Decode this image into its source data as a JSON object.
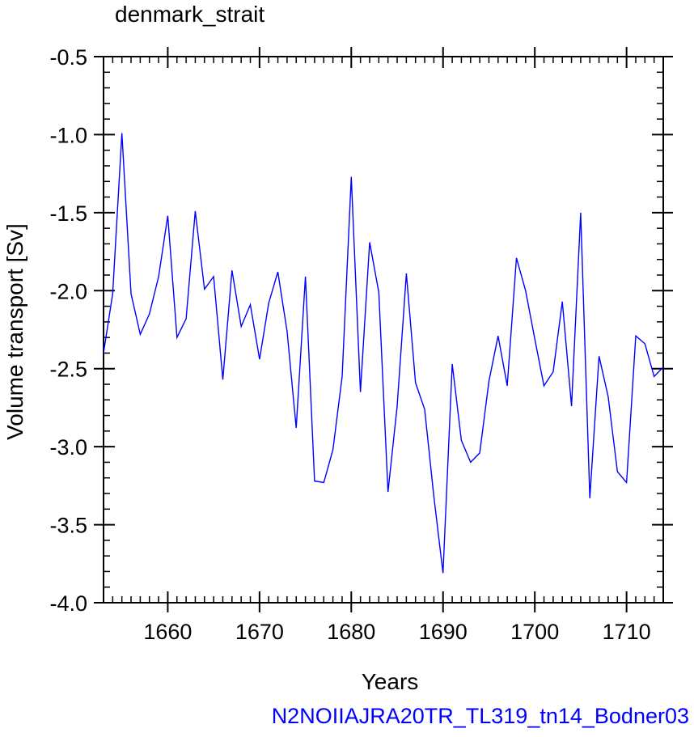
{
  "chart_data": {
    "type": "line",
    "title": "denmark_strait",
    "xlabel": "Years",
    "ylabel": "Volume transport [Sv]",
    "xlim": [
      1653,
      1714
    ],
    "ylim": [
      -4.0,
      -0.5
    ],
    "xticks": [
      1660,
      1670,
      1680,
      1690,
      1700,
      1710
    ],
    "xtick_labels": [
      "1660",
      "1670",
      "1680",
      "1690",
      "1700",
      "1710"
    ],
    "yticks": [
      -0.5,
      -1.0,
      -1.5,
      -2.0,
      -2.5,
      -3.0,
      -3.5,
      -4.0
    ],
    "ytick_labels": [
      "-0.5",
      "-1.0",
      "-1.5",
      "-2.0",
      "-2.5",
      "-3.0",
      "-3.5",
      "-4.0"
    ],
    "grid": false,
    "series": [
      {
        "color": "#0000ff",
        "x": [
          1653,
          1654,
          1655,
          1656,
          1657,
          1658,
          1659,
          1660,
          1661,
          1662,
          1663,
          1664,
          1665,
          1666,
          1667,
          1668,
          1669,
          1670,
          1671,
          1672,
          1673,
          1674,
          1675,
          1676,
          1677,
          1678,
          1679,
          1680,
          1681,
          1682,
          1683,
          1684,
          1685,
          1686,
          1687,
          1688,
          1689,
          1690,
          1691,
          1692,
          1693,
          1694,
          1695,
          1696,
          1697,
          1698,
          1699,
          1700,
          1701,
          1702,
          1703,
          1704,
          1705,
          1706,
          1707,
          1708,
          1709,
          1710,
          1711,
          1712,
          1713,
          1714
        ],
        "y": [
          -2.4,
          -2.02,
          -0.99,
          -2.02,
          -2.28,
          -2.15,
          -1.91,
          -1.52,
          -2.3,
          -2.18,
          -1.49,
          -1.99,
          -1.91,
          -2.57,
          -1.87,
          -2.23,
          -2.09,
          -2.44,
          -2.08,
          -1.88,
          -2.26,
          -2.88,
          -1.91,
          -3.22,
          -3.23,
          -3.02,
          -2.55,
          -1.27,
          -2.65,
          -1.69,
          -2.01,
          -3.29,
          -2.74,
          -1.89,
          -2.59,
          -2.76,
          -3.32,
          -3.81,
          -2.47,
          -2.96,
          -3.1,
          -3.04,
          -2.58,
          -2.29,
          -2.61,
          -1.79,
          -2.0,
          -2.31,
          -2.61,
          -2.52,
          -2.07,
          -2.74,
          -1.5,
          -3.33,
          -2.42,
          -2.68,
          -3.16,
          -3.23,
          -2.29,
          -2.34,
          -2.55,
          -2.49
        ]
      }
    ]
  },
  "footer": {
    "run_label": "N2NOIIAJRA20TR_TL319_tn14_Bodner03",
    "run_label_color": "#0000ff"
  }
}
